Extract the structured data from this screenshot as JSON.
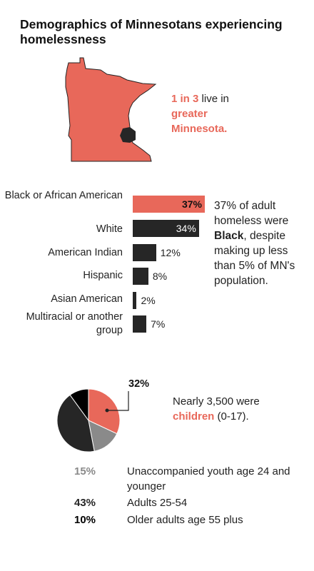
{
  "title": "Demographics of Minnesotans experiencing homelessness",
  "colors": {
    "accent": "#e8685a",
    "dark": "#262626",
    "gray": "#8a8a8a",
    "black": "#000000"
  },
  "map": {
    "stat_highlight": "1 in 3",
    "text_mid": " live in ",
    "text_highlight": "greater Minnesota."
  },
  "bars_note": {
    "part1": "37% of adult homeless were ",
    "bold": "Black",
    "part2": ", despite making up less than 5% of MN's population."
  },
  "pie": {
    "callout": "32%",
    "note_part1": "Nearly 3,500 were ",
    "note_highlight": "children",
    "note_part2": " (0-17)."
  },
  "legend": [
    {
      "pct": "15%",
      "label": "Unaccompanied youth age 24 and younger",
      "color": "#8a8a8a"
    },
    {
      "pct": "43%",
      "label": "Adults 25-54",
      "color": "#262626"
    },
    {
      "pct": "10%",
      "label": "Older adults age 55 plus",
      "color": "#000000"
    }
  ],
  "chart_data": [
    {
      "type": "bar",
      "orientation": "horizontal",
      "categories": [
        "Black or African American",
        "White",
        "American Indian",
        "Hispanic",
        "Asian American",
        "Multiracial or another group"
      ],
      "values": [
        37,
        34,
        12,
        8,
        2,
        7
      ],
      "value_labels": [
        "37%",
        "34%",
        "12%",
        "8%",
        "2%",
        "7%"
      ],
      "highlight": "Black or African American"
    },
    {
      "type": "pie",
      "categories": [
        "Children (0-17)",
        "Unaccompanied youth age 24 and younger",
        "Adults 25-54",
        "Older adults age 55 plus"
      ],
      "values": [
        32,
        15,
        43,
        10
      ],
      "colors": [
        "#e8685a",
        "#8a8a8a",
        "#262626",
        "#000000"
      ]
    }
  ]
}
